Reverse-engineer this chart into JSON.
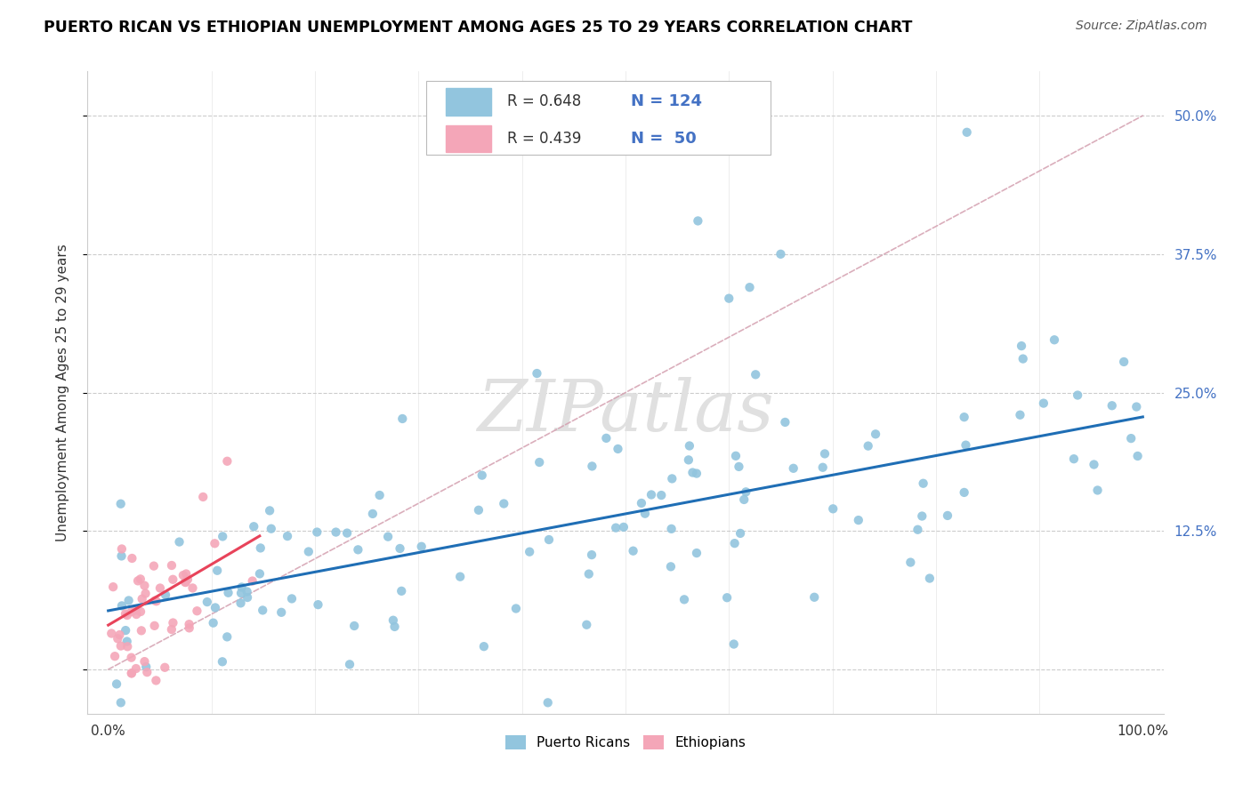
{
  "title": "PUERTO RICAN VS ETHIOPIAN UNEMPLOYMENT AMONG AGES 25 TO 29 YEARS CORRELATION CHART",
  "source": "Source: ZipAtlas.com",
  "ylabel": "Unemployment Among Ages 25 to 29 years",
  "ytick_vals": [
    0.0,
    0.125,
    0.25,
    0.375,
    0.5
  ],
  "ytick_labels": [
    "",
    "12.5%",
    "25.0%",
    "37.5%",
    "50.0%"
  ],
  "xlim": [
    -0.02,
    1.02
  ],
  "ylim": [
    -0.04,
    0.54
  ],
  "color_blue": "#92c5de",
  "color_pink": "#f4a6b8",
  "line_blue": "#1f6eb5",
  "line_pink": "#e8435a",
  "line_dashed_color": "#d4a0b0",
  "watermark_color": "#e0e0e0",
  "tick_label_color": "#4472c4",
  "legend_r1": "R = 0.648",
  "legend_n1": "N = 124",
  "legend_r2": "R = 0.439",
  "legend_n2": "N =  50",
  "legend_color_r": "#333333",
  "legend_color_n": "#4472c4"
}
